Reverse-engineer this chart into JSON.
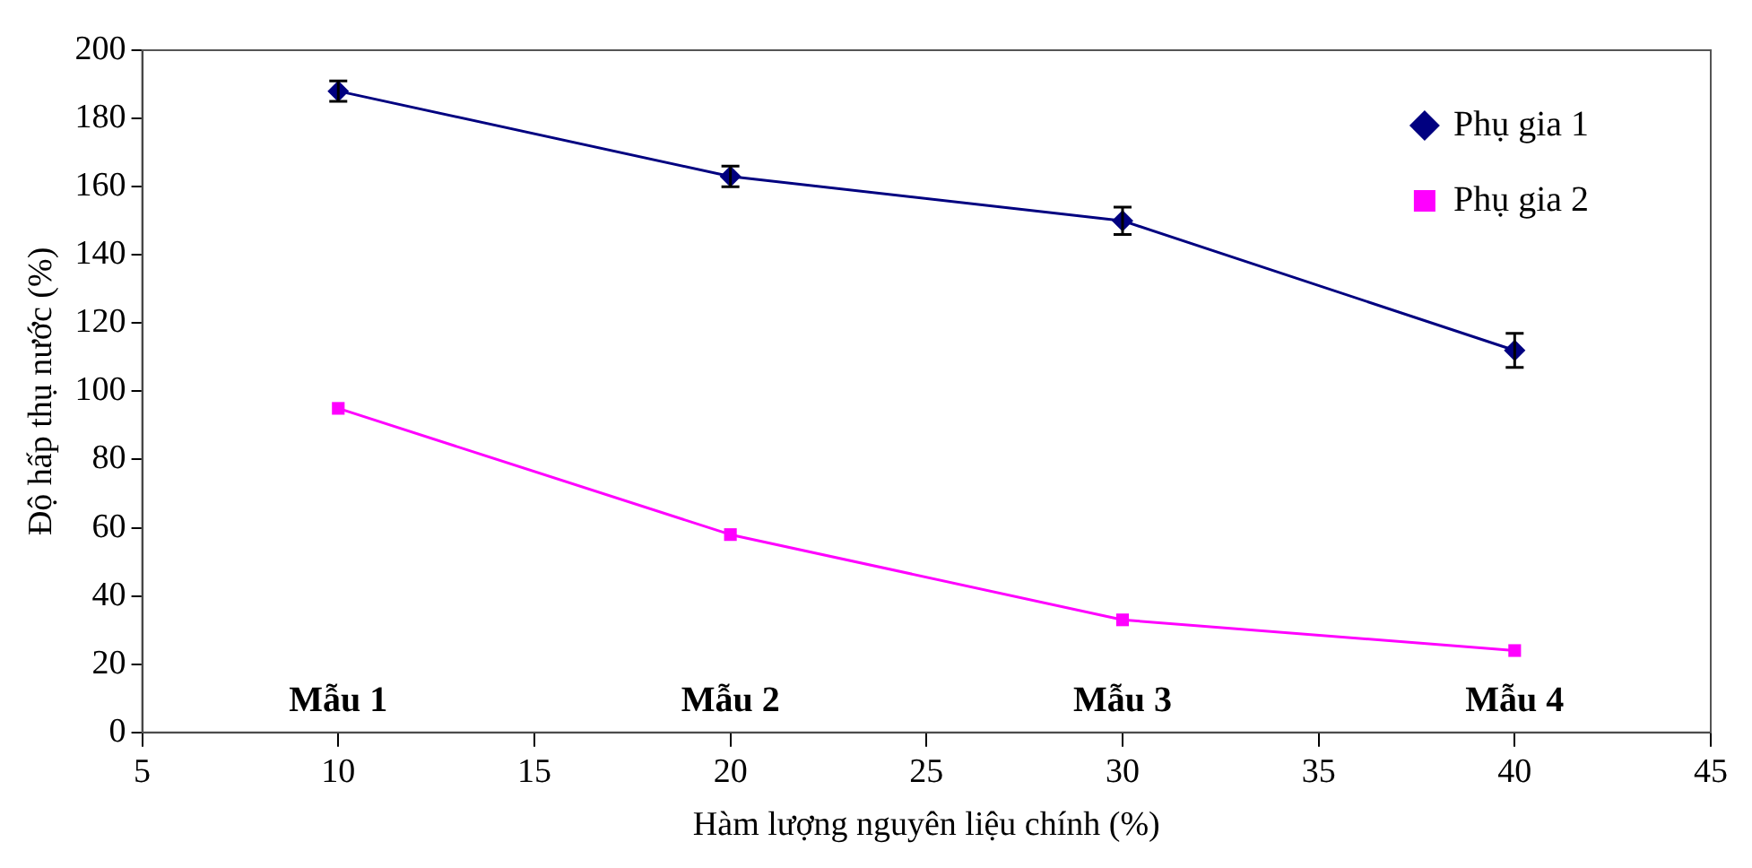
{
  "chart_data": {
    "type": "line",
    "xlabel": "Hàm lượng nguyên liệu chính (%)",
    "ylabel": "Độ hấp thụ nước (%)",
    "x": [
      10,
      20,
      30,
      40
    ],
    "series": [
      {
        "name": "Phụ gia 1",
        "color": "#000080",
        "marker": "diamond",
        "values": [
          188,
          163,
          150,
          112
        ],
        "errors": [
          3,
          3,
          4,
          5
        ]
      },
      {
        "name": "Phụ gia 2",
        "color": "#ff00ff",
        "marker": "square",
        "values": [
          95,
          58,
          33,
          24
        ]
      }
    ],
    "xlim": [
      5,
      45
    ],
    "xticks": [
      5,
      10,
      15,
      20,
      25,
      30,
      35,
      40,
      45
    ],
    "ylim": [
      0,
      200
    ],
    "yticks": [
      0,
      20,
      40,
      60,
      80,
      100,
      120,
      140,
      160,
      180,
      200
    ],
    "grid": false,
    "legend": "top right",
    "annotations": [
      "Mẫu 1",
      "Mẫu 2",
      "Mẫu 3",
      "Mẫu 4"
    ]
  }
}
